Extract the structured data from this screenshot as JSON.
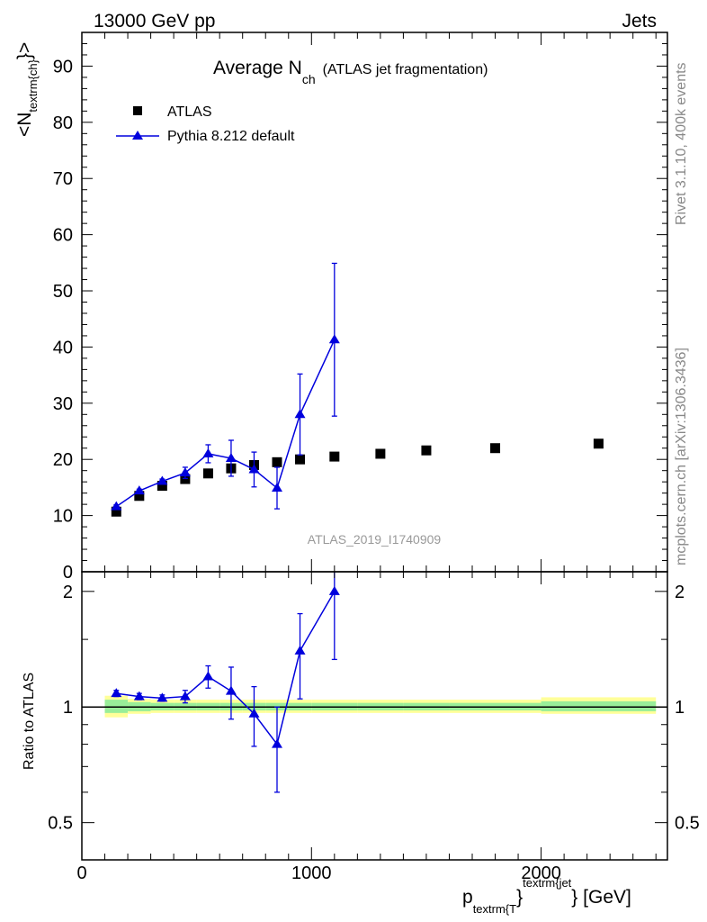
{
  "header": {
    "left": "13000 GeV pp",
    "right": "Jets"
  },
  "side_text": {
    "rivet": "Rivet 3.1.10,  400k events",
    "mcplots": "mcplots.cern.ch [arXiv:1306.3436]"
  },
  "chart_data": [
    {
      "type": "scatter",
      "panel": "main",
      "title_main": "Average N",
      "title_sub": "ch",
      "title_suffix": "(ATLAS jet fragmentation)",
      "ylabel_prefix": "<N",
      "ylabel_sub": "textrm{ch}",
      "ylabel_suffix": "}>",
      "xlim": [
        0,
        2550
      ],
      "ylim": [
        0,
        96
      ],
      "yticks": [
        0,
        10,
        20,
        30,
        40,
        50,
        60,
        70,
        80,
        90
      ],
      "analysis_label": "ATLAS_2019_I1740909",
      "legend_position": "top-left",
      "series": [
        {
          "name": "ATLAS",
          "color": "#000000",
          "marker": "square",
          "x": [
            150,
            250,
            350,
            450,
            550,
            650,
            750,
            850,
            950,
            1100,
            1300,
            1500,
            1800,
            2250
          ],
          "y": [
            10.7,
            13.5,
            15.3,
            16.5,
            17.5,
            18.4,
            19.0,
            19.5,
            20.0,
            20.5,
            21.0,
            21.6,
            22.0,
            22.8
          ]
        },
        {
          "name": "Pythia 8.212 default",
          "color": "#0000dd",
          "marker": "triangle",
          "x": [
            150,
            250,
            350,
            450,
            550,
            650,
            750,
            850,
            950,
            1100
          ],
          "y": [
            11.6,
            14.4,
            16.1,
            17.6,
            21.0,
            20.2,
            18.2,
            14.9,
            28.0,
            41.3
          ],
          "err": [
            0.3,
            0.3,
            0.4,
            1.0,
            1.6,
            3.2,
            3.1,
            3.7,
            7.2,
            13.6
          ]
        }
      ]
    },
    {
      "type": "line",
      "panel": "ratio",
      "ylabel": "Ratio to ATLAS",
      "xlabel_main": "p",
      "xlabel_sub": "textrm{T",
      "xlabel_brace": "}",
      "xlabel_sup": "textrm{jet",
      "xlabel_tail": "} [GeV]",
      "xlim": [
        0,
        2550
      ],
      "ylim": [
        0.4,
        2.25
      ],
      "yscale": "log",
      "yticks": [
        0.5,
        1,
        2
      ],
      "ytick_labels": [
        "0.5",
        "1",
        "2"
      ],
      "xticks": [
        0,
        1000,
        2000
      ],
      "xtick_labels": [
        "0",
        "1000",
        "2000"
      ],
      "reference": 1.0,
      "bands": [
        {
          "x0": 100,
          "x1": 200,
          "yellow": [
            0.94,
            1.07
          ],
          "green": [
            0.965,
            1.045
          ]
        },
        {
          "x0": 200,
          "x1": 300,
          "yellow": [
            0.96,
            1.05
          ],
          "green": [
            0.975,
            1.03
          ]
        },
        {
          "x0": 300,
          "x1": 400,
          "yellow": [
            0.965,
            1.045
          ],
          "green": [
            0.98,
            1.025
          ]
        },
        {
          "x0": 400,
          "x1": 500,
          "yellow": [
            0.965,
            1.045
          ],
          "green": [
            0.98,
            1.025
          ]
        },
        {
          "x0": 500,
          "x1": 600,
          "yellow": [
            0.965,
            1.045
          ],
          "green": [
            0.98,
            1.025
          ]
        },
        {
          "x0": 600,
          "x1": 700,
          "yellow": [
            0.965,
            1.045
          ],
          "green": [
            0.98,
            1.025
          ]
        },
        {
          "x0": 700,
          "x1": 800,
          "yellow": [
            0.965,
            1.045
          ],
          "green": [
            0.98,
            1.025
          ]
        },
        {
          "x0": 800,
          "x1": 900,
          "yellow": [
            0.965,
            1.045
          ],
          "green": [
            0.98,
            1.025
          ]
        },
        {
          "x0": 900,
          "x1": 1000,
          "yellow": [
            0.965,
            1.045
          ],
          "green": [
            0.98,
            1.025
          ]
        },
        {
          "x0": 1000,
          "x1": 1200,
          "yellow": [
            0.965,
            1.045
          ],
          "green": [
            0.98,
            1.025
          ]
        },
        {
          "x0": 1200,
          "x1": 1400,
          "yellow": [
            0.965,
            1.045
          ],
          "green": [
            0.98,
            1.025
          ]
        },
        {
          "x0": 1400,
          "x1": 1600,
          "yellow": [
            0.965,
            1.045
          ],
          "green": [
            0.98,
            1.025
          ]
        },
        {
          "x0": 1600,
          "x1": 2000,
          "yellow": [
            0.965,
            1.045
          ],
          "green": [
            0.98,
            1.025
          ]
        },
        {
          "x0": 2000,
          "x1": 2500,
          "yellow": [
            0.96,
            1.06
          ],
          "green": [
            0.975,
            1.035
          ]
        }
      ],
      "series": [
        {
          "name": "Pythia 8.212 default",
          "color": "#0000dd",
          "x": [
            150,
            250,
            350,
            450,
            550,
            650,
            750,
            850,
            950,
            1100
          ],
          "y": [
            1.085,
            1.065,
            1.055,
            1.065,
            1.2,
            1.1,
            0.96,
            0.8,
            1.4,
            2.0
          ],
          "err": [
            0.02,
            0.02,
            0.02,
            0.04,
            0.08,
            0.17,
            0.17,
            0.2,
            0.35,
            0.67
          ]
        }
      ]
    }
  ]
}
